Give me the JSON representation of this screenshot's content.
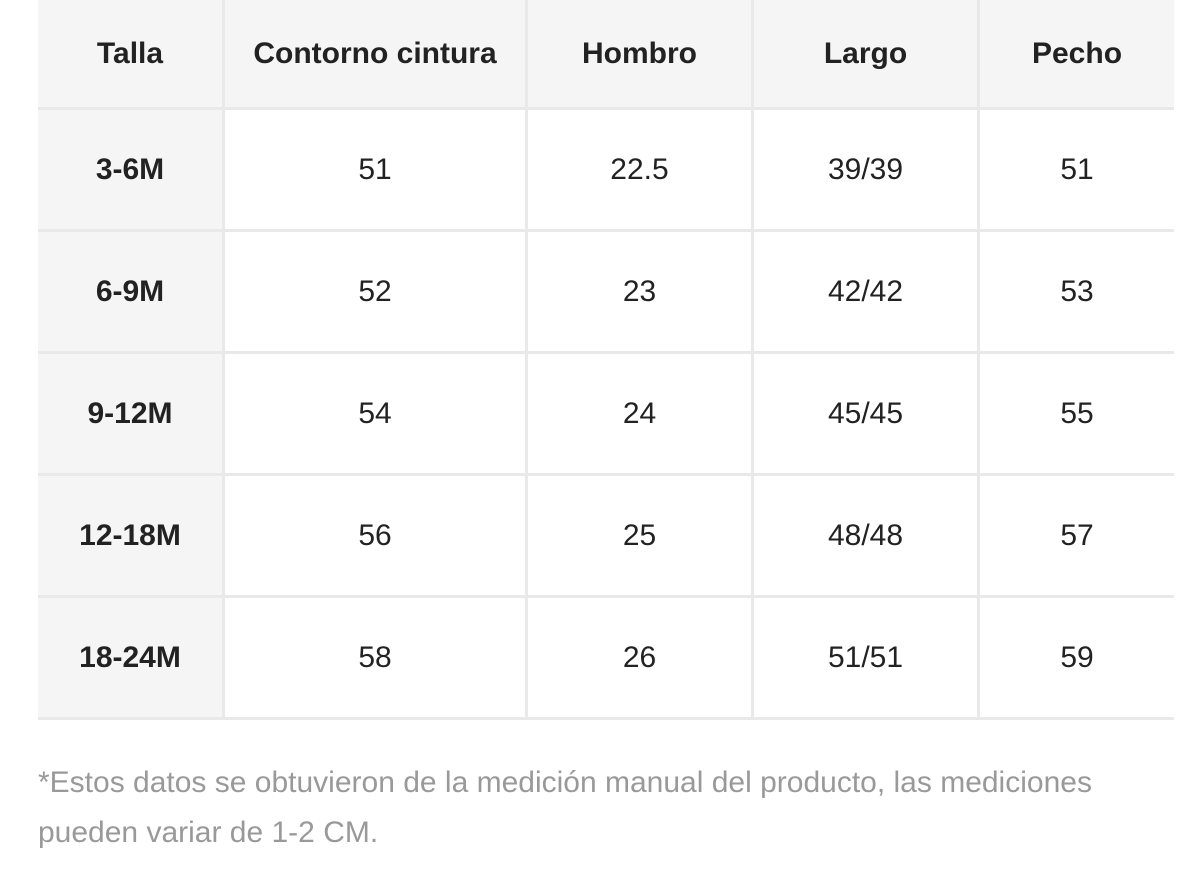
{
  "table": {
    "header": [
      "Talla",
      "Contorno cintura",
      "Hombro",
      "Largo",
      "Pecho"
    ],
    "rows": [
      [
        "3-6M",
        "51",
        "22.5",
        "39/39",
        "51"
      ],
      [
        "6-9M",
        "52",
        "23",
        "42/42",
        "53"
      ],
      [
        "9-12M",
        "54",
        "24",
        "45/45",
        "55"
      ],
      [
        "12-18M",
        "56",
        "25",
        "48/48",
        "57"
      ],
      [
        "18-24M",
        "58",
        "26",
        "51/51",
        "59"
      ]
    ]
  },
  "note": "*Estos datos se obtuvieron de la medición manual del producto, las mediciones pueden variar de 1-2 CM."
}
